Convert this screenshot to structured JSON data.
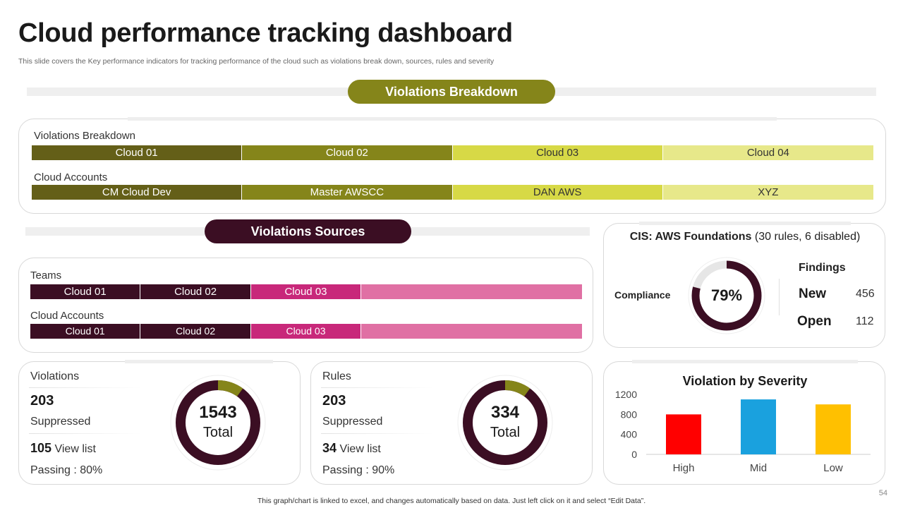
{
  "header": {
    "title": "Cloud performance tracking dashboard",
    "subtitle": "This slide covers the Key performance indicators for tracking performance of the cloud such as violations break down, sources, rules and severity"
  },
  "colors": {
    "olive_dark": "#645f18",
    "olive": "#85851a",
    "lime": "#d7d946",
    "lime_light": "#e7e88a",
    "plum_dark": "#3b0e23",
    "magenta": "#c8287a",
    "pink": "#e070a4",
    "red": "#ff0000",
    "blue": "#1aa1de",
    "yellow": "#ffc000"
  },
  "breakdown": {
    "section_label": "Violations Breakdown",
    "row1_label": "Violations Breakdown",
    "row1": [
      "Cloud 01",
      "Cloud 02",
      "Cloud 03",
      "Cloud 04"
    ],
    "row2_label": "Cloud Accounts",
    "row2": [
      "CM Cloud Dev",
      "Master AWSCC",
      "DAN AWS",
      "XYZ"
    ]
  },
  "sources": {
    "section_label": "Violations Sources",
    "row1_label": "Teams",
    "row1": [
      "Cloud 01",
      "Cloud 02",
      "Cloud 03",
      ""
    ],
    "row2_label": "Cloud Accounts",
    "row2": [
      "Cloud 01",
      "Cloud 02",
      "Cloud 03",
      ""
    ]
  },
  "cis": {
    "title_bold": "CIS: AWS Foundations",
    "title_rest": " (30 rules,  6 disabled)",
    "compliance_label": "Compliance",
    "compliance_text": "79%",
    "compliance_value": 79,
    "findings_label": "Findings",
    "new_label": "New",
    "new_value": "456",
    "open_label": "Open",
    "open_value": "112"
  },
  "violations_card": {
    "title": "Violations",
    "suppressed_value": "203",
    "suppressed_label": "Suppressed",
    "view_value": "105",
    "view_label": " View list",
    "passing": "Passing : 80%",
    "total_value": "1543",
    "total_label": "Total",
    "donut_fraction": 0.1
  },
  "rules_card": {
    "title": "Rules",
    "suppressed_value": "203",
    "suppressed_label": "Suppressed",
    "view_value": "34",
    "view_label": " View list",
    "passing": "Passing : 90%",
    "total_value": "334",
    "total_label": "Total",
    "donut_fraction": 0.1
  },
  "chart_data": {
    "type": "bar",
    "title": "Violation  by Severity",
    "categories": [
      "High",
      "Mid",
      "Low"
    ],
    "values": [
      800,
      1100,
      1000
    ],
    "colors": [
      "#ff0000",
      "#1aa1de",
      "#ffc000"
    ],
    "yticks": [
      0,
      400,
      800,
      1200
    ],
    "ylim": [
      0,
      1200
    ],
    "xlabel": "",
    "ylabel": ""
  },
  "footer": {
    "note": "This graph/chart is linked to excel,  and changes automatically based on data. Just left click on it and select “Edit Data”.",
    "page": "54"
  }
}
